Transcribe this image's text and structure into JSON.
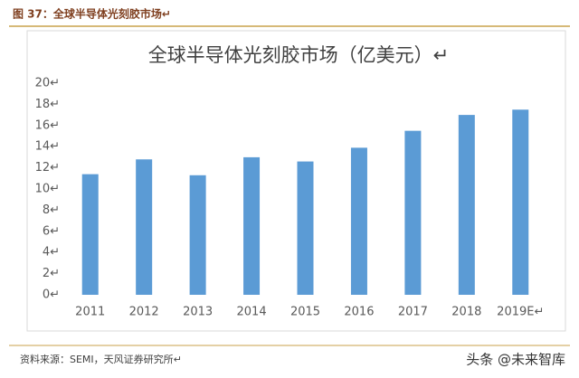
{
  "header": "图 37：全球半导体光刻胶市场↵",
  "chart_data": {
    "type": "bar",
    "title": "全球半导体光刻胶市场（亿美元）↵",
    "categories": [
      "2011",
      "2012",
      "2013",
      "2014",
      "2015",
      "2016",
      "2017",
      "2018",
      "2019E↵"
    ],
    "values": [
      11.4,
      12.8,
      11.3,
      13.0,
      12.6,
      13.9,
      15.5,
      17.0,
      17.5
    ],
    "color": "#5b9bd5",
    "ylim": [
      0,
      20
    ],
    "yticks": [
      {
        "value": 0,
        "label": "0↵"
      },
      {
        "value": 2,
        "label": "2↵"
      },
      {
        "value": 4,
        "label": "4↵"
      },
      {
        "value": 6,
        "label": "6↵"
      },
      {
        "value": 8,
        "label": "8↵"
      },
      {
        "value": 10,
        "label": "10↵"
      },
      {
        "value": 12,
        "label": "12↵"
      },
      {
        "value": 14,
        "label": "14↵"
      },
      {
        "value": 16,
        "label": "16↵"
      },
      {
        "value": 18,
        "label": "18↵"
      },
      {
        "value": 20,
        "label": "20↵"
      }
    ],
    "grid": false
  },
  "source": "资料来源：SEMI，天风证券研究所↵",
  "watermark": "头条 @未来智库"
}
